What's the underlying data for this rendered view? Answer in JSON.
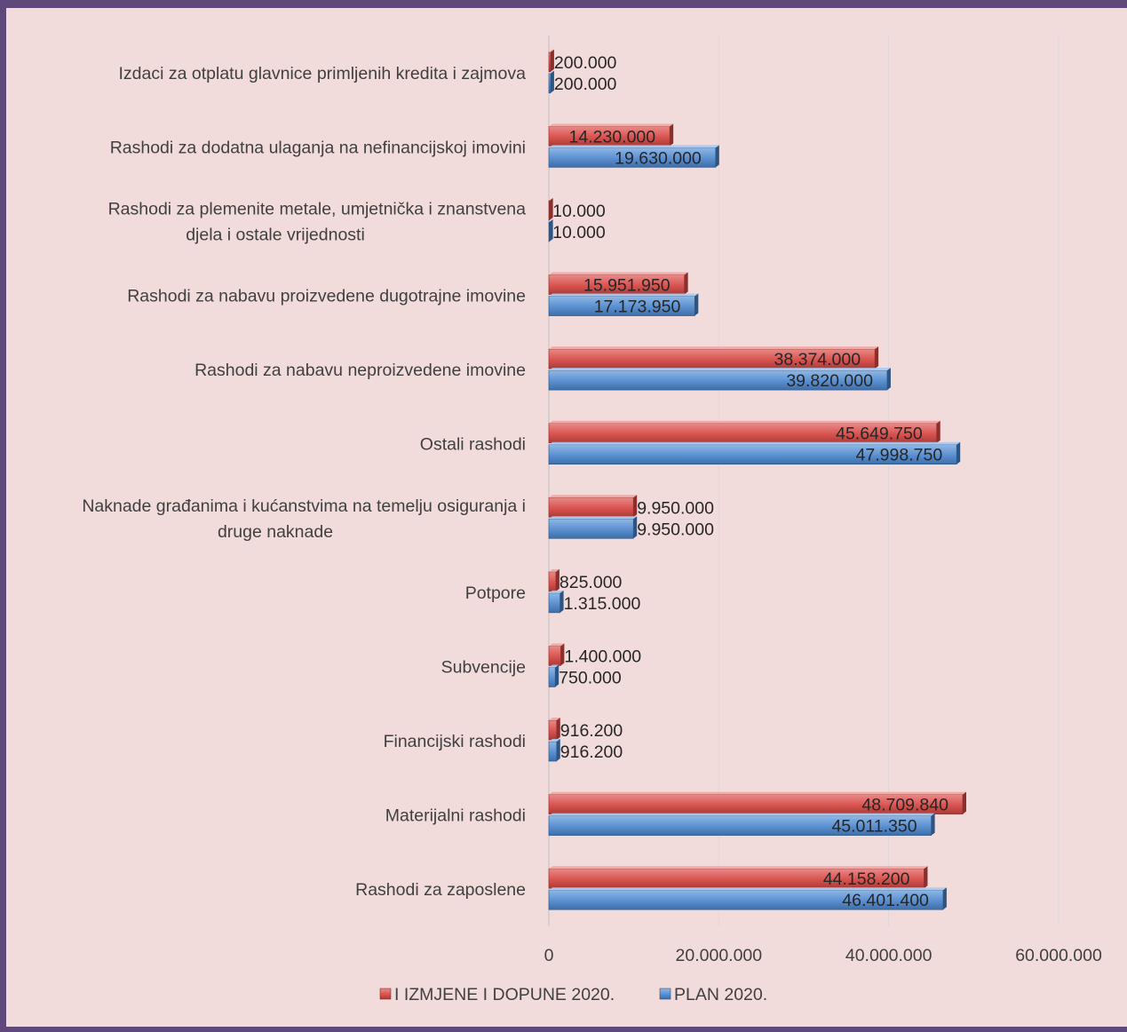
{
  "chart_data": {
    "type": "bar",
    "orientation": "horizontal",
    "categories": [
      "Rashodi za zaposlene",
      "Materijalni rashodi",
      "Financijski rashodi",
      "Subvencije",
      "Potpore",
      "Naknade građanima i kućanstvima na temelju osiguranja i druge naknade",
      "Ostali rashodi",
      "Rashodi za nabavu neproizvedene imovine",
      "Rashodi za nabavu proizvedene dugotrajne imovine",
      "Rashodi za plemenite metale, umjetnička i znanstvena djela i ostale vrijednosti",
      "Rashodi za dodatna ulaganja na nefinancijskoj imovini",
      "Izdaci za otplatu glavnice primljenih kredita i zajmova"
    ],
    "category_lines": [
      [
        "Rashodi za zaposlene"
      ],
      [
        "Materijalni rashodi"
      ],
      [
        "Financijski rashodi"
      ],
      [
        "Subvencije"
      ],
      [
        "Potpore"
      ],
      [
        "Naknade građanima i kućanstvima na temelju osiguranja i",
        "druge naknade"
      ],
      [
        "Ostali rashodi"
      ],
      [
        "Rashodi za nabavu neproizvedene imovine"
      ],
      [
        "Rashodi za nabavu proizvedene dugotrajne imovine"
      ],
      [
        "Rashodi za plemenite metale, umjetnička i znanstvena",
        "djela i ostale vrijednosti"
      ],
      [
        "Rashodi za dodatna ulaganja na nefinancijskoj imovini"
      ],
      [
        "Izdaci za otplatu glavnice primljenih kredita i zajmova"
      ]
    ],
    "series": [
      {
        "name": "I IZMJENE I DOPUNE 2020.",
        "color": "#c0504d",
        "values": [
          44158200,
          48709840,
          916200,
          1400000,
          825000,
          9950000,
          45649750,
          38374000,
          15951950,
          10000,
          14230000,
          200000
        ],
        "labels": [
          "44.158.200",
          "48.709.840",
          "916.200",
          "1.400.000",
          "825.000",
          "9.950.000",
          "45.649.750",
          "38.374.000",
          "15.951.950",
          "10.000",
          "14.230.000",
          "200.000"
        ]
      },
      {
        "name": "PLAN 2020.",
        "color": "#4f81bd",
        "values": [
          46401400,
          45011350,
          916200,
          750000,
          1315000,
          9950000,
          47998750,
          39820000,
          17173950,
          10000,
          19630000,
          200000
        ],
        "labels": [
          "46.401.400",
          "45.011.350",
          "916.200",
          "750.000",
          "1.315.000",
          "9.950.000",
          "47.998.750",
          "39.820.000",
          "17.173.950",
          "10.000",
          "19.630.000",
          "200.000"
        ]
      }
    ],
    "xlim": [
      0,
      60000000
    ],
    "x_ticks": [
      0,
      20000000,
      40000000,
      60000000
    ],
    "x_tick_labels": [
      "0",
      "20.000.000",
      "40.000.000",
      "60.000.000"
    ],
    "grid": "vertical",
    "legend_position": "bottom",
    "frame_color": "#5f497a",
    "background": "#f2dcdb"
  }
}
